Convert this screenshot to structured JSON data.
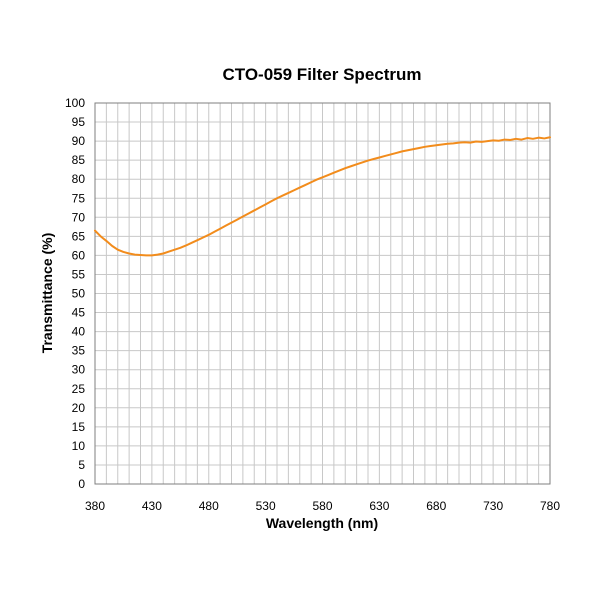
{
  "chart_data": {
    "type": "line",
    "title": "CTO-059 Filter Spectrum",
    "xlabel": "Wavelength (nm)",
    "ylabel": "Transmittance (%)",
    "xlim": [
      380,
      780
    ],
    "ylim": [
      0,
      100
    ],
    "x_ticks": [
      380,
      430,
      480,
      530,
      580,
      630,
      680,
      730,
      780
    ],
    "y_ticks": [
      0,
      5,
      10,
      15,
      20,
      25,
      30,
      35,
      40,
      45,
      50,
      55,
      60,
      65,
      70,
      75,
      80,
      85,
      90,
      95,
      100
    ],
    "x_minor_step": 10,
    "grid": true,
    "series_color": "#f28c1c",
    "series": [
      {
        "x": [
          380,
          385,
          390,
          395,
          400,
          405,
          410,
          415,
          420,
          425,
          430,
          435,
          440,
          445,
          450,
          455,
          460,
          465,
          470,
          475,
          480,
          485,
          490,
          495,
          500,
          505,
          510,
          515,
          520,
          525,
          530,
          535,
          540,
          545,
          550,
          555,
          560,
          565,
          570,
          575,
          580,
          585,
          590,
          595,
          600,
          605,
          610,
          615,
          620,
          625,
          630,
          635,
          640,
          645,
          650,
          655,
          660,
          665,
          670,
          675,
          680,
          685,
          690,
          695,
          700,
          705,
          710,
          715,
          720,
          725,
          730,
          735,
          740,
          745,
          750,
          755,
          760,
          765,
          770,
          775,
          780
        ],
        "y": [
          66.5,
          65.0,
          63.8,
          62.5,
          61.5,
          60.9,
          60.5,
          60.2,
          60.1,
          60.0,
          60.0,
          60.2,
          60.5,
          61.0,
          61.5,
          62.0,
          62.6,
          63.3,
          64.0,
          64.7,
          65.4,
          66.2,
          67.0,
          67.8,
          68.6,
          69.4,
          70.2,
          71.0,
          71.8,
          72.6,
          73.4,
          74.2,
          75.0,
          75.7,
          76.4,
          77.1,
          77.8,
          78.5,
          79.2,
          79.9,
          80.5,
          81.1,
          81.7,
          82.3,
          82.9,
          83.4,
          83.9,
          84.4,
          84.9,
          85.3,
          85.7,
          86.1,
          86.5,
          86.9,
          87.3,
          87.6,
          87.9,
          88.2,
          88.5,
          88.7,
          88.9,
          89.1,
          89.3,
          89.4,
          89.6,
          89.7,
          89.6,
          89.9,
          89.8,
          90.0,
          90.2,
          90.1,
          90.4,
          90.3,
          90.6,
          90.4,
          90.8,
          90.6,
          90.9,
          90.7,
          91.0
        ]
      }
    ]
  }
}
